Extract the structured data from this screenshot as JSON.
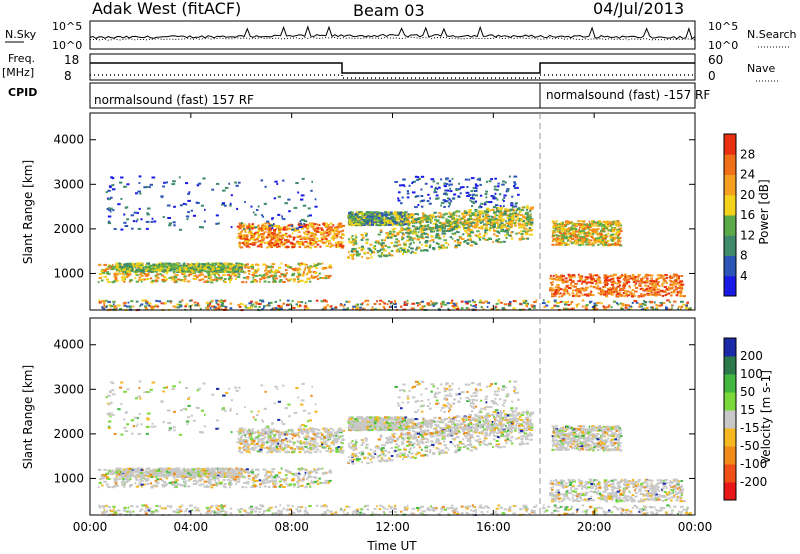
{
  "header": {
    "station": "Adak West (fitACF)",
    "beam": "Beam 03",
    "date": "04/Jul/2013"
  },
  "top_panels": {
    "nsky_label": "N.Sky",
    "nsearch_label": "N.Search",
    "nsky_ticks": [
      "10^5",
      "10^0"
    ],
    "nsearch_ticks": [
      "10^5",
      "10^0"
    ],
    "freq_label": "Freq.",
    "freq_unit": "[MHz]",
    "freq_ticks": [
      "18",
      "8"
    ],
    "nave_label": "Nave",
    "nave_ticks": [
      "60",
      "0"
    ],
    "cpid_label": "CPID",
    "cpid_segments": [
      "normalsound (fast) 157 RF",
      "normalsound (fast) -157 RF"
    ]
  },
  "chart_data": [
    {
      "type": "heatmap",
      "name": "Power",
      "ylabel": "Slant Range [km]",
      "xlabel": "",
      "ylim": [
        180,
        4600
      ],
      "yticks": [
        "1000",
        "2000",
        "3000",
        "4000"
      ],
      "colorbar": {
        "label": "Power [dB]",
        "ticks": [
          "4",
          "8",
          "12",
          "16",
          "20",
          "24",
          "28"
        ],
        "colors": [
          "#1a1ae6",
          "#2c55b8",
          "#3f8a6a",
          "#5aaa4a",
          "#f2d21a",
          "#f5a020",
          "#f07018",
          "#e83010"
        ]
      }
    },
    {
      "type": "heatmap",
      "name": "Velocity",
      "ylabel": "Slant Range [km]",
      "xlabel": "Time UT",
      "xticks": [
        "00:00",
        "04:00",
        "08:00",
        "12:00",
        "16:00",
        "20:00",
        "00:00"
      ],
      "ylim": [
        180,
        4600
      ],
      "yticks": [
        "1000",
        "2000",
        "3000",
        "4000"
      ],
      "colorbar": {
        "label": "Velocity [m s-1]",
        "ticks": [
          "200",
          "100",
          "50",
          "15",
          "-15",
          "-50",
          "-100",
          "-200"
        ],
        "colors": [
          "#1a2aa8",
          "#2c7a4a",
          "#42b840",
          "#7ad83a",
          "#c8c8c8",
          "#f5b820",
          "#f08a18",
          "#f05018",
          "#e81818"
        ]
      }
    }
  ]
}
